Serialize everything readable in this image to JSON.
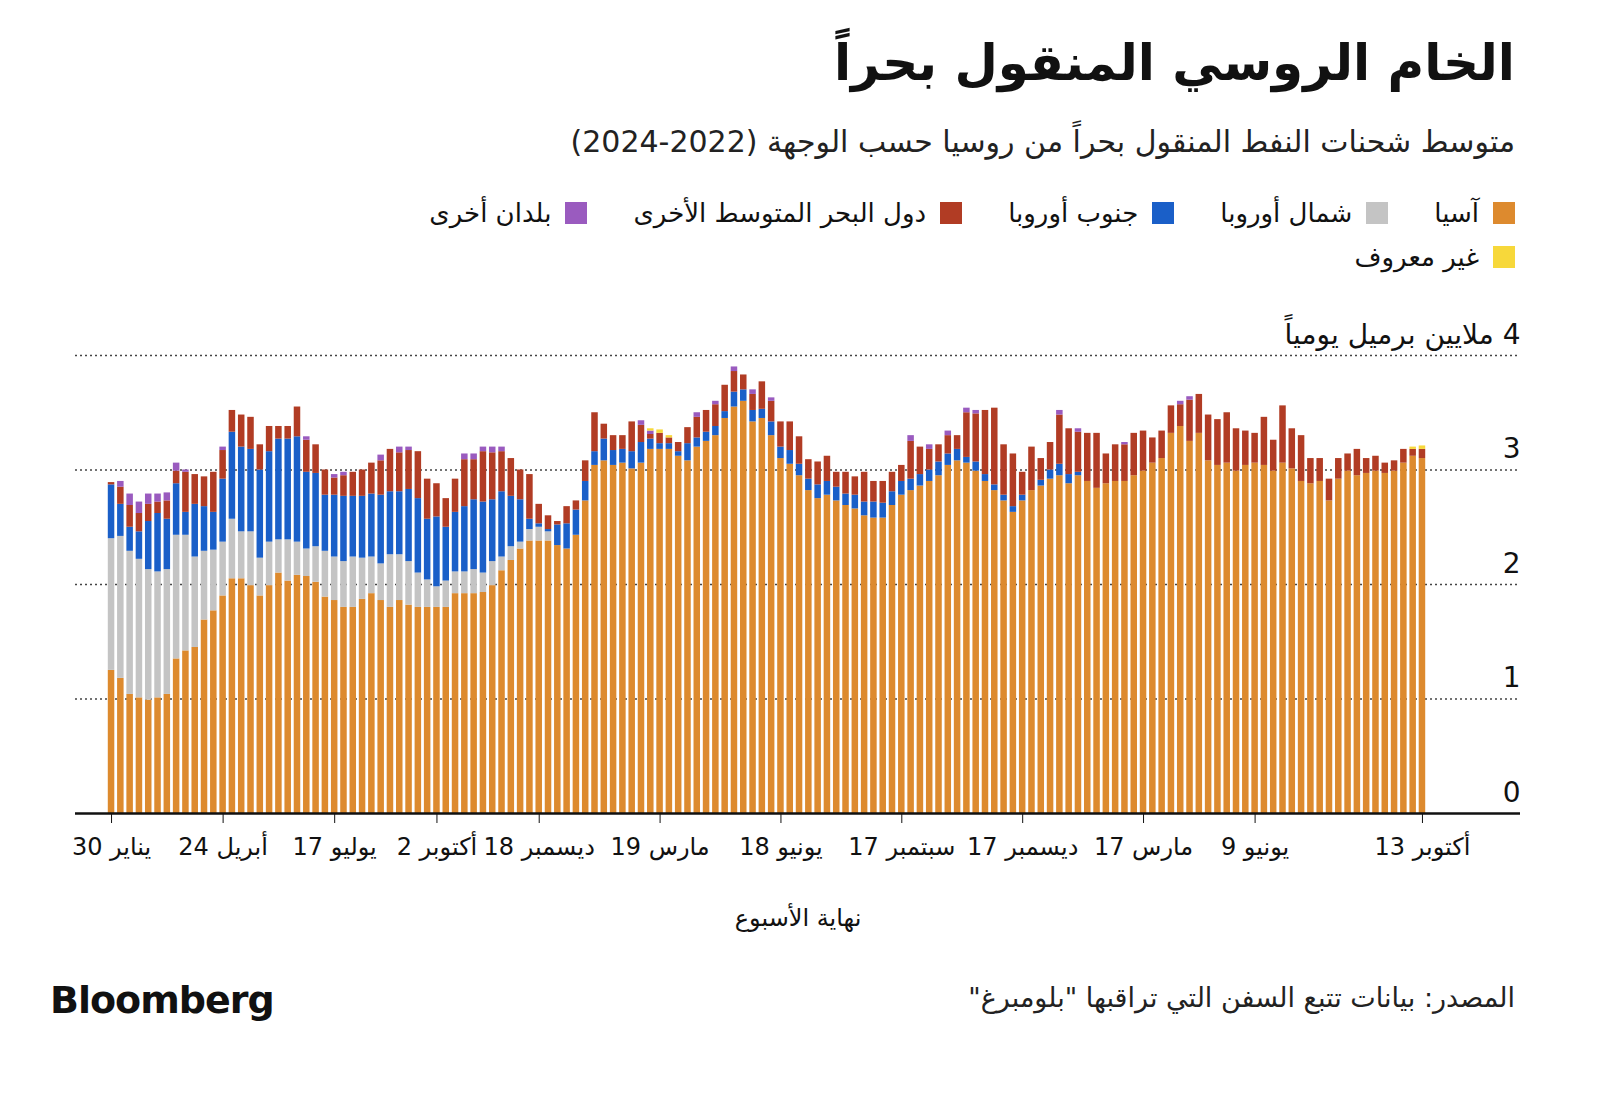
{
  "chart_data": {
    "type": "bar",
    "stacked": true,
    "title": "الخام الروسي المنقول بحراً",
    "subtitle": "متوسط شحنات النفط المنقول بحراً من روسيا حسب الوجهة (2022-2024)",
    "x_label": "نهاية الأسبوع",
    "source": "المصدر: بيانات تتبع السفن التي تراقبها \"بلومبرغ\"",
    "logo": "Bloomberg",
    "legend": "top",
    "grid": true,
    "ylim": [
      0,
      4
    ],
    "yticks": [
      0,
      1,
      2,
      3,
      {
        "value": 4,
        "label": "4 ملايين برميل يومياً"
      }
    ],
    "categories": [
      "30 يناير",
      null,
      null,
      null,
      null,
      null,
      null,
      null,
      null,
      null,
      null,
      null,
      "24 أبريل",
      null,
      null,
      null,
      null,
      null,
      null,
      null,
      null,
      null,
      null,
      null,
      "17 يوليو",
      null,
      null,
      null,
      null,
      null,
      null,
      null,
      null,
      null,
      null,
      "2 أكتوبر",
      null,
      null,
      null,
      null,
      null,
      null,
      null,
      null,
      null,
      null,
      "18 ديسمبر",
      null,
      null,
      null,
      null,
      null,
      null,
      null,
      null,
      null,
      null,
      null,
      null,
      "19 مارس",
      null,
      null,
      null,
      null,
      null,
      null,
      null,
      null,
      null,
      null,
      null,
      null,
      "18 يونيو",
      null,
      null,
      null,
      null,
      null,
      null,
      null,
      null,
      null,
      null,
      null,
      null,
      "17 سبتمبر",
      null,
      null,
      null,
      null,
      null,
      null,
      null,
      null,
      null,
      null,
      null,
      null,
      "17 ديسمبر",
      null,
      null,
      null,
      null,
      null,
      null,
      null,
      null,
      null,
      null,
      null,
      null,
      "17 مارس",
      null,
      null,
      null,
      null,
      null,
      null,
      null,
      null,
      null,
      null,
      null,
      "9 يونيو",
      null,
      null,
      null,
      null,
      null,
      null,
      null,
      null,
      null,
      null,
      null,
      null,
      null,
      null,
      null,
      null,
      null,
      "13 أكتوبر"
    ],
    "series": [
      {
        "name": "آسيا",
        "color": "#dd8a2e",
        "values": [
          1.25,
          1.18,
          1.04,
          1.01,
          0.99,
          1.01,
          1.04,
          1.35,
          1.42,
          1.45,
          1.69,
          1.77,
          1.9,
          2.05,
          2.05,
          1.99,
          1.9,
          1.99,
          2.1,
          2.03,
          2.08,
          2.07,
          2.02,
          1.89,
          1.86,
          1.8,
          1.8,
          1.87,
          1.92,
          1.86,
          1.8,
          1.86,
          1.82,
          1.8,
          1.8,
          1.8,
          1.8,
          1.92,
          1.92,
          1.92,
          1.93,
          1.99,
          2.12,
          2.21,
          2.31,
          2.38,
          2.38,
          2.38,
          2.34,
          2.31,
          2.43,
          2.73,
          3.04,
          3.08,
          3.04,
          3.06,
          3.01,
          3.06,
          3.18,
          3.18,
          3.18,
          3.12,
          3.08,
          3.2,
          3.25,
          3.3,
          3.45,
          3.55,
          3.6,
          3.42,
          3.45,
          3.3,
          3.1,
          3.05,
          2.95,
          2.82,
          2.75,
          2.78,
          2.73,
          2.69,
          2.66,
          2.6,
          2.58,
          2.58,
          2.69,
          2.78,
          2.82,
          2.86,
          2.9,
          2.95,
          3.04,
          3.08,
          3.06,
          2.99,
          2.9,
          2.82,
          2.73,
          2.63,
          2.73,
          2.82,
          2.86,
          2.92,
          2.95,
          2.88,
          2.95,
          2.9,
          2.84,
          2.88,
          2.9,
          2.9,
          2.95,
          2.99,
          3.06,
          3.1,
          3.32,
          3.38,
          3.25,
          3.32,
          3.08,
          3.04,
          3.06,
          2.99,
          3.04,
          3.06,
          3.04,
          2.99,
          3.06,
          3.01,
          2.9,
          2.88,
          2.9,
          2.73,
          2.92,
          2.99,
          2.95,
          2.97,
          2.99,
          2.97,
          2.99,
          3.06,
          3.12,
          3.1
        ]
      },
      {
        "name": "شمال أوروبا",
        "color": "#c4c4c4",
        "values": [
          1.15,
          1.24,
          1.25,
          1.21,
          1.14,
          1.1,
          1.09,
          1.08,
          1.01,
          0.79,
          0.6,
          0.53,
          0.47,
          0.52,
          0.41,
          0.47,
          0.33,
          0.38,
          0.29,
          0.36,
          0.29,
          0.24,
          0.31,
          0.4,
          0.38,
          0.4,
          0.44,
          0.36,
          0.32,
          0.32,
          0.46,
          0.4,
          0.38,
          0.3,
          0.24,
          0.18,
          0.23,
          0.19,
          0.19,
          0.21,
          0.17,
          0.21,
          0.12,
          0.12,
          0.06,
          0.1,
          0.12,
          0.08,
          0,
          0,
          0,
          0,
          0,
          0,
          0,
          0,
          0,
          0,
          0,
          0,
          0,
          0,
          0,
          0,
          0,
          0,
          0,
          0,
          0,
          0,
          0,
          0,
          0,
          0,
          0,
          0,
          0,
          0,
          0,
          0,
          0,
          0,
          0,
          0,
          0,
          0,
          0,
          0,
          0,
          0,
          0,
          0,
          0,
          0,
          0,
          0,
          0,
          0,
          0,
          0,
          0,
          0,
          0,
          0,
          0,
          0,
          0,
          0,
          0,
          0,
          0,
          0,
          0,
          0,
          0,
          0,
          0,
          0,
          0,
          0,
          0,
          0,
          0,
          0,
          0,
          0,
          0,
          0,
          0,
          0,
          0,
          0,
          0,
          0,
          0,
          0,
          0,
          0,
          0,
          0,
          0,
          0
        ]
      },
      {
        "name": "جنوب أوروبا",
        "color": "#1a5fc8",
        "values": [
          0.47,
          0.28,
          0.21,
          0.24,
          0.42,
          0.51,
          0.44,
          0.45,
          0.2,
          0.46,
          0.39,
          0.33,
          0.55,
          0.76,
          0.74,
          0.72,
          0.77,
          0.79,
          0.88,
          0.88,
          0.92,
          0.67,
          0.64,
          0.49,
          0.54,
          0.57,
          0.53,
          0.54,
          0.55,
          0.6,
          0.55,
          0.55,
          0.63,
          0.65,
          0.53,
          0.61,
          0.47,
          0.52,
          0.57,
          0.61,
          0.62,
          0.54,
          0.57,
          0.44,
          0.37,
          0.09,
          0.03,
          0.02,
          0.18,
          0.22,
          0.22,
          0.17,
          0.12,
          0.19,
          0.13,
          0.12,
          0.15,
          0.18,
          0.09,
          0.05,
          0.05,
          0.04,
          0.15,
          0.08,
          0.08,
          0.08,
          0.06,
          0.13,
          0.1,
          0.1,
          0.08,
          0.12,
          0.1,
          0.12,
          0.1,
          0.1,
          0.12,
          0.12,
          0.12,
          0.1,
          0.12,
          0.12,
          0.14,
          0.13,
          0.12,
          0.12,
          0.1,
          0.1,
          0.1,
          0.12,
          0.1,
          0.1,
          0.05,
          0.08,
          0.06,
          0.05,
          0.05,
          0.05,
          0.05,
          0,
          0.05,
          0.08,
          0.1,
          0.08,
          0.03,
          0,
          0,
          0,
          0,
          0,
          0,
          0,
          0,
          0,
          0,
          0,
          0,
          0,
          0,
          0,
          0,
          0,
          0,
          0,
          0,
          0,
          0,
          0,
          0,
          0,
          0,
          0,
          0,
          0,
          0,
          0,
          0,
          0,
          0,
          0,
          0,
          0
        ]
      },
      {
        "name": "دول البحر المتوسط الأخرى",
        "color": "#b13c24",
        "values": [
          0.02,
          0.15,
          0.19,
          0.16,
          0.15,
          0.1,
          0.16,
          0.11,
          0.35,
          0.26,
          0.26,
          0.35,
          0.25,
          0.19,
          0.28,
          0.28,
          0.22,
          0.22,
          0.11,
          0.11,
          0.26,
          0.28,
          0.25,
          0.22,
          0.15,
          0.18,
          0.21,
          0.23,
          0.27,
          0.3,
          0.37,
          0.34,
          0.34,
          0.41,
          0.35,
          0.29,
          0.25,
          0.29,
          0.41,
          0.35,
          0.44,
          0.41,
          0.35,
          0.33,
          0.26,
          0.39,
          0.17,
          0.12,
          0.03,
          0.15,
          0.08,
          0.18,
          0.34,
          0.13,
          0.13,
          0.12,
          0.26,
          0.15,
          0.04,
          0.09,
          0.05,
          0.08,
          0.14,
          0.18,
          0.19,
          0.19,
          0.23,
          0.18,
          0.13,
          0.14,
          0.24,
          0.18,
          0.22,
          0.25,
          0.24,
          0.17,
          0.2,
          0.22,
          0.13,
          0.19,
          0.16,
          0.26,
          0.18,
          0.19,
          0.17,
          0.14,
          0.33,
          0.24,
          0.18,
          0.15,
          0.16,
          0.12,
          0.39,
          0.42,
          0.56,
          0.67,
          0.44,
          0.46,
          0.2,
          0.38,
          0.19,
          0.24,
          0.43,
          0.4,
          0.35,
          0.42,
          0.48,
          0.26,
          0.32,
          0.32,
          0.37,
          0.35,
          0.22,
          0.24,
          0.24,
          0.19,
          0.36,
          0.34,
          0.4,
          0.4,
          0.44,
          0.37,
          0.3,
          0.26,
          0.42,
          0.27,
          0.5,
          0.35,
          0.4,
          0.22,
          0.2,
          0.19,
          0.18,
          0.15,
          0.23,
          0.13,
          0.13,
          0.09,
          0.09,
          0.12,
          0.06,
          0.08
        ]
      },
      {
        "name": "بلدان أخرى",
        "color": "#9a5bbf",
        "values": [
          0,
          0.05,
          0.1,
          0.1,
          0.09,
          0.07,
          0.07,
          0.07,
          0.02,
          0,
          0,
          0,
          0.03,
          0,
          0,
          0,
          0,
          0,
          0,
          0,
          0,
          0.03,
          0,
          0,
          0.03,
          0.03,
          0,
          0,
          0,
          0.05,
          0,
          0.05,
          0.03,
          0,
          0,
          0,
          0,
          0,
          0.05,
          0.05,
          0.04,
          0.05,
          0.04,
          0,
          0,
          0,
          0,
          0,
          0,
          0,
          0,
          0,
          0,
          0,
          0,
          0,
          0,
          0.04,
          0.03,
          0,
          0,
          0,
          0,
          0.04,
          0,
          0.03,
          0,
          0.04,
          0,
          0.04,
          0,
          0.03,
          0,
          0,
          0,
          0,
          0,
          0,
          0,
          0,
          0,
          0,
          0,
          0,
          0,
          0,
          0.05,
          0,
          0.04,
          0,
          0.04,
          0,
          0.04,
          0.03,
          0,
          0,
          0,
          0,
          0,
          0,
          0,
          0,
          0.04,
          0,
          0.03,
          0,
          0,
          0,
          0,
          0.02,
          0,
          0,
          0,
          0,
          0,
          0.03,
          0.03,
          0,
          0,
          0,
          0,
          0,
          0,
          0,
          0,
          0,
          0,
          0,
          0,
          0,
          0,
          0,
          0,
          0,
          0,
          0,
          0,
          0,
          0,
          0,
          0,
          0
        ]
      },
      {
        "name": "غير معروف",
        "color": "#f7d83a",
        "values": [
          0,
          0,
          0,
          0,
          0,
          0,
          0,
          0,
          0,
          0,
          0,
          0,
          0,
          0,
          0,
          0,
          0,
          0,
          0,
          0,
          0,
          0,
          0,
          0,
          0,
          0,
          0,
          0,
          0,
          0,
          0,
          0,
          0,
          0,
          0,
          0,
          0,
          0,
          0,
          0,
          0,
          0,
          0,
          0,
          0,
          0,
          0,
          0,
          0,
          0,
          0,
          0,
          0,
          0,
          0,
          0,
          0,
          0,
          0.02,
          0.03,
          0.02,
          0,
          0,
          0,
          0,
          0,
          0,
          0,
          0,
          0,
          0,
          0,
          0,
          0,
          0,
          0,
          0,
          0,
          0,
          0,
          0,
          0,
          0,
          0,
          0,
          0,
          0,
          0,
          0,
          0,
          0,
          0,
          0,
          0,
          0,
          0,
          0,
          0,
          0,
          0,
          0,
          0,
          0,
          0,
          0,
          0,
          0,
          0,
          0,
          0,
          0,
          0,
          0,
          0,
          0,
          0,
          0,
          0,
          0,
          0,
          0,
          0,
          0,
          0,
          0,
          0,
          0,
          0,
          0,
          0,
          0,
          0,
          0,
          0,
          0,
          0,
          0,
          0,
          0,
          0,
          0.02,
          0.03
        ]
      }
    ]
  }
}
